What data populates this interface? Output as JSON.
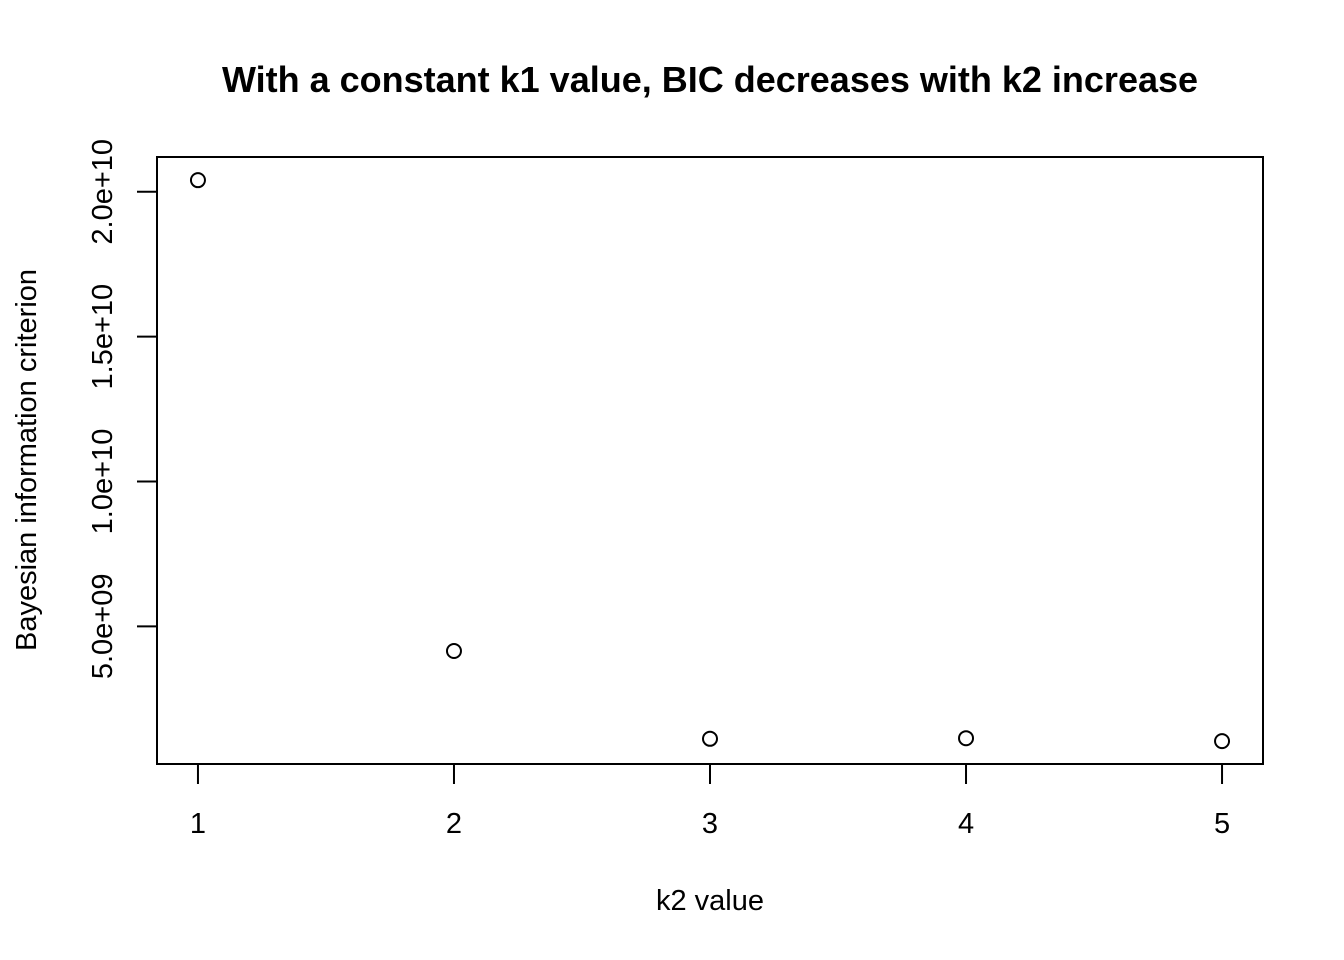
{
  "chart_data": {
    "type": "scatter",
    "title": "With a constant k1 value, BIC decreases with k2 increase",
    "xlabel": "k2 value",
    "ylabel": "Bayesian information criterion",
    "x": [
      1,
      2,
      3,
      4,
      5
    ],
    "y": [
      20400000000,
      4150000000,
      1120000000,
      1140000000,
      1040000000
    ],
    "xlim": [
      0.84,
      5.16
    ],
    "ylim": [
      250000000,
      21200000000
    ],
    "x_ticks": [
      {
        "value": 1,
        "label": "1"
      },
      {
        "value": 2,
        "label": "2"
      },
      {
        "value": 3,
        "label": "3"
      },
      {
        "value": 4,
        "label": "4"
      },
      {
        "value": 5,
        "label": "5"
      }
    ],
    "y_ticks": [
      {
        "value": 5000000000,
        "label": "5.0e+09"
      },
      {
        "value": 10000000000,
        "label": "1.0e+10"
      },
      {
        "value": 15000000000,
        "label": "1.5e+10"
      },
      {
        "value": 20000000000,
        "label": "2.0e+10"
      }
    ],
    "marker": "open-circle",
    "grid": false,
    "legend": "none"
  }
}
